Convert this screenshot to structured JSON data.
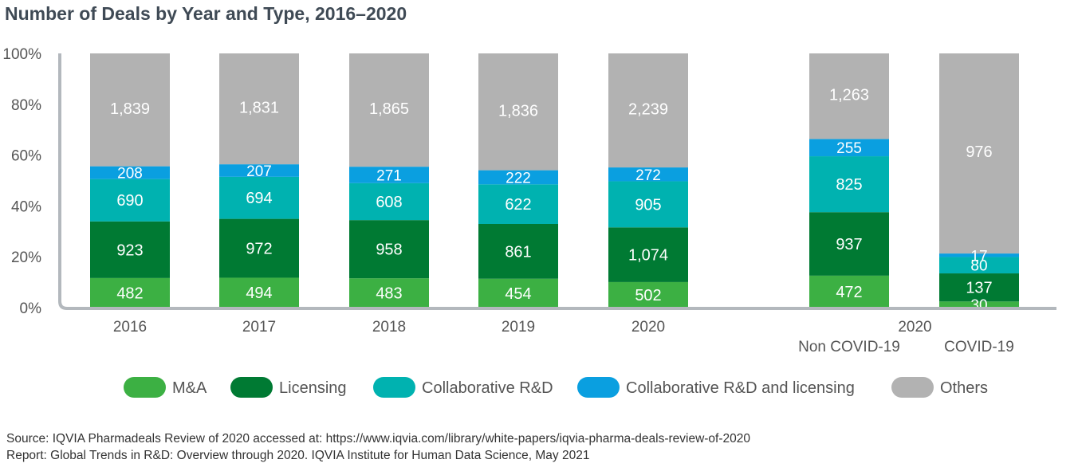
{
  "title": "Number of Deals by Year and Type, 2016–2020",
  "source": {
    "line1": "Source: IQVIA Pharmadeals Review of 2020 accessed at: https://www.iqvia.com/library/white-papers/iqvia-pharma-deals-review-of-2020",
    "line2": "Report: Global Trends in R&D: Overview through 2020. IQVIA Institute for Human Data Science, May 2021"
  },
  "chart_data": {
    "type": "bar",
    "stacked": true,
    "normalized": true,
    "title": "Number of Deals by Year and Type, 2016–2020",
    "categories": [
      "2016",
      "2017",
      "2018",
      "2019",
      "2020",
      "Non COVID-19",
      "COVID-19"
    ],
    "category_group_label": "2020",
    "y_ticks": [
      "0%",
      "20%",
      "40%",
      "60%",
      "80%",
      "100%"
    ],
    "ylim": [
      0,
      100
    ],
    "series": [
      {
        "name": "M&A",
        "color": "#3cb043",
        "values": [
          482,
          494,
          483,
          454,
          502,
          472,
          30
        ],
        "labels": [
          "482",
          "494",
          "483",
          "454",
          "502",
          "472",
          "30"
        ]
      },
      {
        "name": "Licensing",
        "color": "#007a33",
        "values": [
          923,
          972,
          958,
          861,
          1074,
          937,
          137
        ],
        "labels": [
          "923",
          "972",
          "958",
          "861",
          "1,074",
          "937",
          "137"
        ]
      },
      {
        "name": "Collaborative R&D",
        "color": "#00b2b0",
        "values": [
          690,
          694,
          608,
          622,
          905,
          825,
          80
        ],
        "labels": [
          "690",
          "694",
          "608",
          "622",
          "905",
          "825",
          "80"
        ]
      },
      {
        "name": "Collaborative R&D and licensing",
        "color": "#0a9fe0",
        "values": [
          208,
          207,
          271,
          222,
          272,
          255,
          17
        ],
        "labels": [
          "208",
          "207",
          "271",
          "222",
          "272",
          "255",
          "17"
        ]
      },
      {
        "name": "Others",
        "color": "#b2b2b2",
        "values": [
          1839,
          1831,
          1865,
          1836,
          2239,
          1263,
          976
        ],
        "labels": [
          "1,839",
          "1,831",
          "1,865",
          "1,836",
          "2,239",
          "1,263",
          "976"
        ]
      }
    ],
    "legend_position": "bottom",
    "grid": false
  }
}
